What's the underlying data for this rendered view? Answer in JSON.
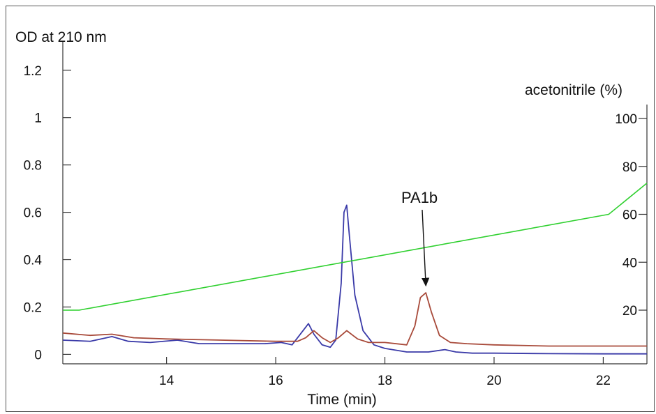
{
  "chart_data": {
    "type": "line",
    "title": "",
    "xlabel": "Time (min)",
    "ylabel_left": "OD at 210 nm",
    "ylabel_right": "acetonitrile (%)",
    "xlim": [
      12.1,
      22.8
    ],
    "ylim_left": [
      -0.04,
      1.32
    ],
    "ylim_right": [
      0,
      107
    ],
    "x_ticks": [
      14,
      16,
      18,
      20,
      22
    ],
    "y_left_ticks": [
      {
        "value": 0,
        "label": "0"
      },
      {
        "value": 0.2,
        "label": "0.2"
      },
      {
        "value": 0.4,
        "label": "0.4"
      },
      {
        "value": 0.6,
        "label": "0.6"
      },
      {
        "value": 0.8,
        "label": "0.8"
      },
      {
        "value": 1.0,
        "label": "1"
      },
      {
        "value": 1.2,
        "label": "1.2"
      }
    ],
    "y_right_ticks": [
      20,
      40,
      60,
      80,
      100
    ],
    "grid": false,
    "series": [
      {
        "color": "#3a3aa8",
        "axis": "left",
        "x": [
          12.1,
          12.6,
          12.9,
          13.0,
          13.3,
          13.7,
          14.2,
          14.6,
          15.2,
          15.8,
          16.1,
          16.3,
          16.5,
          16.6,
          16.7,
          16.85,
          17.0,
          17.1,
          17.2,
          17.25,
          17.3,
          17.35,
          17.45,
          17.6,
          17.8,
          18.0,
          18.4,
          18.8,
          19.1,
          19.3,
          19.6,
          20.0,
          21.0,
          22.0,
          22.8
        ],
        "y": [
          0.06,
          0.055,
          0.07,
          0.075,
          0.055,
          0.05,
          0.06,
          0.045,
          0.045,
          0.045,
          0.05,
          0.04,
          0.1,
          0.13,
          0.085,
          0.04,
          0.03,
          0.06,
          0.3,
          0.6,
          0.63,
          0.5,
          0.25,
          0.1,
          0.04,
          0.025,
          0.01,
          0.01,
          0.02,
          0.01,
          0.005,
          0.005,
          0.003,
          0.002,
          0.002
        ]
      },
      {
        "color": "#a84a3a",
        "axis": "left",
        "x": [
          12.1,
          12.6,
          13.0,
          13.4,
          14.0,
          15.0,
          16.0,
          16.4,
          16.55,
          16.7,
          16.85,
          17.0,
          17.15,
          17.3,
          17.5,
          17.7,
          18.0,
          18.4,
          18.55,
          18.65,
          18.75,
          18.85,
          19.0,
          19.2,
          19.5,
          20.0,
          21.0,
          22.0,
          22.8
        ],
        "y": [
          0.09,
          0.08,
          0.085,
          0.07,
          0.065,
          0.06,
          0.055,
          0.055,
          0.07,
          0.1,
          0.07,
          0.05,
          0.07,
          0.1,
          0.065,
          0.05,
          0.05,
          0.04,
          0.12,
          0.24,
          0.26,
          0.18,
          0.08,
          0.05,
          0.045,
          0.04,
          0.035,
          0.035,
          0.035
        ]
      },
      {
        "color": "#2fd02f",
        "axis": "right",
        "x": [
          12.1,
          12.4,
          22.1,
          22.8
        ],
        "y": [
          20,
          20,
          60,
          73
        ]
      }
    ],
    "annotations": [
      {
        "text": "PA1b",
        "x": 18.3,
        "y": 0.64,
        "arrow_to_x": 18.75,
        "arrow_to_y": 0.29
      }
    ]
  }
}
